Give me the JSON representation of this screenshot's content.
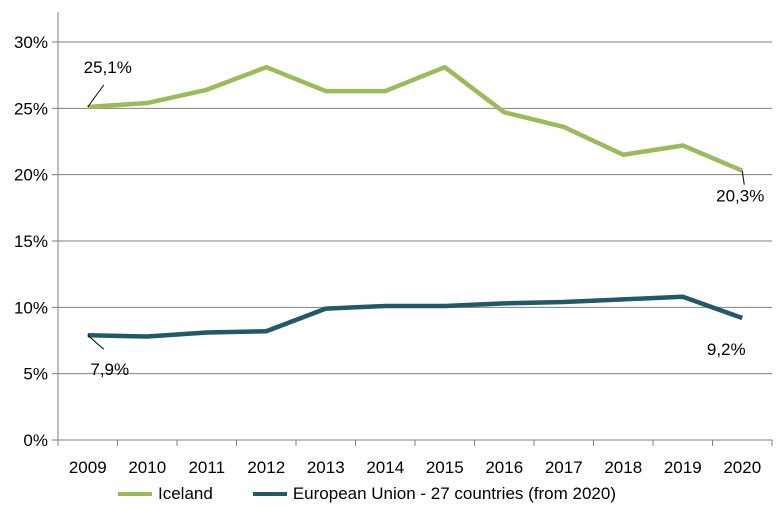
{
  "chart_data": {
    "type": "line",
    "categories": [
      "2009",
      "2010",
      "2011",
      "2012",
      "2013",
      "2014",
      "2015",
      "2016",
      "2017",
      "2018",
      "2019",
      "2020"
    ],
    "series": [
      {
        "name": "Iceland",
        "color": "#9BBB59",
        "values": [
          25.1,
          25.4,
          26.4,
          28.1,
          26.3,
          26.3,
          28.1,
          24.7,
          23.6,
          21.5,
          22.2,
          20.3
        ]
      },
      {
        "name": "European Union - 27 countries (from 2020)",
        "color": "#215967",
        "values": [
          7.9,
          7.8,
          8.1,
          8.2,
          9.9,
          10.1,
          10.1,
          10.3,
          10.4,
          10.6,
          10.8,
          9.2
        ]
      }
    ],
    "y_ticks": [
      "0%",
      "5%",
      "10%",
      "15%",
      "20%",
      "25%",
      "30%"
    ],
    "ylim": [
      0,
      30
    ],
    "grid": true,
    "legend_position": "bottom",
    "data_labels": [
      {
        "series": 0,
        "index": 0,
        "text": "25,1%"
      },
      {
        "series": 0,
        "index": 11,
        "text": "20,3%"
      },
      {
        "series": 1,
        "index": 0,
        "text": "7,9%"
      },
      {
        "series": 1,
        "index": 11,
        "text": "9,2%"
      }
    ]
  }
}
